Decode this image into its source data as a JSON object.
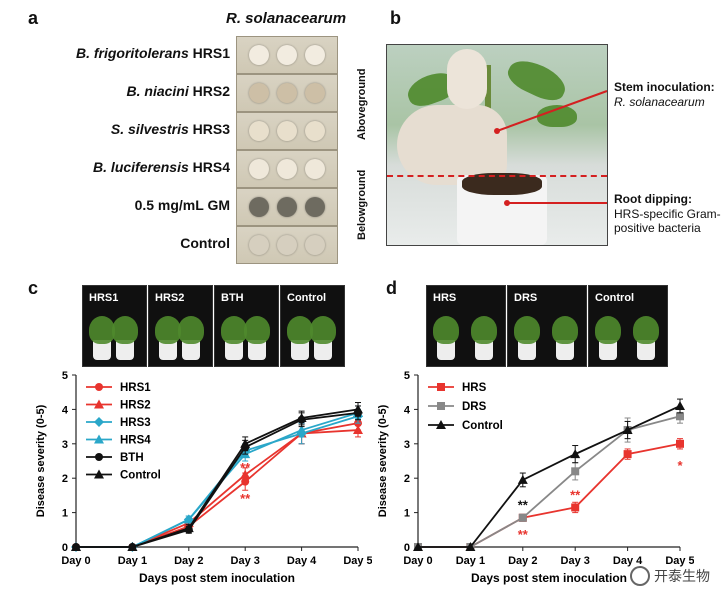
{
  "panels": {
    "a": {
      "letter": "a",
      "header": "R. solanacearum",
      "rows": [
        {
          "genus": "B. frigoritolerans",
          "code": "HRS1",
          "spot_color": "#f2ece0"
        },
        {
          "genus": "B. niacini",
          "code": "HRS2",
          "spot_color": "#cdbfa6"
        },
        {
          "genus": "S. silvestris",
          "code": "HRS3",
          "spot_color": "#e8dfcc"
        },
        {
          "genus": "B. luciferensis",
          "code": "HRS4",
          "spot_color": "#efe8da"
        },
        {
          "genus": "",
          "code": "0.5 mg/mL GM",
          "spot_color": "#6e6b60"
        },
        {
          "genus": "",
          "code": "Control",
          "spot_color": "#d6cfbf"
        }
      ]
    },
    "b": {
      "letter": "b",
      "aboveground": "Aboveground",
      "belowground": "Belowground",
      "stem_title": "Stem inoculation:",
      "stem_sub": "R. solanacearum",
      "root_title": "Root dipping:",
      "root_sub1": "HRS-specific Gram-",
      "root_sub2": "positive bacteria"
    },
    "c": {
      "letter": "c",
      "photos": [
        "HRS1",
        "HRS2",
        "BTH",
        "Control"
      ]
    },
    "d": {
      "letter": "d",
      "photos": [
        "HRS",
        "DRS",
        "Control"
      ]
    }
  },
  "chart_data": [
    {
      "type": "line",
      "panel": "c",
      "x": [
        "Day 0",
        "Day 1",
        "Day 2",
        "Day 3",
        "Day 4",
        "Day 5"
      ],
      "xlabel": "Days post stem inoculation",
      "ylabel": "Disease severity (0-5)",
      "ylim": [
        0,
        5
      ],
      "yticks": [
        0,
        1,
        2,
        3,
        4,
        5
      ],
      "legend_position": "top-left",
      "series": [
        {
          "name": "HRS1",
          "color": "#e8342e",
          "marker": "circle",
          "values": [
            0,
            0,
            0.6,
            1.9,
            3.3,
            3.6
          ],
          "err": [
            0,
            0,
            0.1,
            0.25,
            0.3,
            0.2
          ]
        },
        {
          "name": "HRS2",
          "color": "#e8342e",
          "marker": "triangle",
          "values": [
            0,
            0,
            0.7,
            2.1,
            3.3,
            3.4
          ],
          "err": [
            0,
            0,
            0.1,
            0.2,
            0.3,
            0.2
          ]
        },
        {
          "name": "HRS3",
          "color": "#2aa7c9",
          "marker": "diamond",
          "values": [
            0,
            0,
            0.8,
            2.8,
            3.3,
            3.8
          ],
          "err": [
            0,
            0,
            0.1,
            0.2,
            0.3,
            0.2
          ]
        },
        {
          "name": "HRS4",
          "color": "#2aa7c9",
          "marker": "triangle",
          "values": [
            0,
            0,
            0.8,
            2.7,
            3.4,
            3.9
          ],
          "err": [
            0,
            0,
            0.1,
            0.2,
            0.2,
            0.2
          ]
        },
        {
          "name": "BTH",
          "color": "#111111",
          "marker": "circle",
          "values": [
            0,
            0,
            0.5,
            2.9,
            3.7,
            3.9
          ],
          "err": [
            0,
            0,
            0.1,
            0.2,
            0.2,
            0.2
          ]
        },
        {
          "name": "Control",
          "color": "#111111",
          "marker": "triangle",
          "values": [
            0,
            0,
            0.55,
            3.0,
            3.75,
            4.0
          ],
          "err": [
            0,
            0,
            0.1,
            0.2,
            0.2,
            0.2
          ]
        }
      ],
      "annotations": [
        {
          "x": "Day 3",
          "y": 2.3,
          "text": "**",
          "color": "#e8342e"
        },
        {
          "x": "Day 3",
          "y": 1.4,
          "text": "**",
          "color": "#e8342e"
        }
      ]
    },
    {
      "type": "line",
      "panel": "d",
      "x": [
        "Day 0",
        "Day 1",
        "Day 2",
        "Day 3",
        "Day 4",
        "Day 5"
      ],
      "xlabel": "Days post stem inoculation",
      "ylabel": "Disease severity (0-5)",
      "ylim": [
        0,
        5
      ],
      "yticks": [
        0,
        1,
        2,
        3,
        4,
        5
      ],
      "legend_position": "top-left",
      "series": [
        {
          "name": "HRS",
          "color": "#e8342e",
          "marker": "square",
          "values": [
            0,
            0,
            0.85,
            1.15,
            2.7,
            3.0
          ],
          "err": [
            0,
            0,
            0.1,
            0.15,
            0.15,
            0.15
          ]
        },
        {
          "name": "DRS",
          "color": "#888888",
          "marker": "square",
          "values": [
            0,
            0,
            0.85,
            2.2,
            3.4,
            3.8
          ],
          "err": [
            0,
            0,
            0.1,
            0.25,
            0.35,
            0.2
          ]
        },
        {
          "name": "Control",
          "color": "#111111",
          "marker": "triangle",
          "values": [
            0,
            0,
            1.95,
            2.7,
            3.4,
            4.1
          ],
          "err": [
            0,
            0,
            0.2,
            0.25,
            0.25,
            0.2
          ]
        }
      ],
      "annotations": [
        {
          "x": "Day 2",
          "y": 1.2,
          "text": "**",
          "color": "#111111"
        },
        {
          "x": "Day 2",
          "y": 0.35,
          "text": "**",
          "color": "#e8342e"
        },
        {
          "x": "Day 3",
          "y": 1.5,
          "text": "**",
          "color": "#e8342e"
        },
        {
          "x": "Day 5",
          "y": 2.35,
          "text": "*",
          "color": "#e8342e"
        }
      ]
    }
  ],
  "watermark": "开泰生物"
}
